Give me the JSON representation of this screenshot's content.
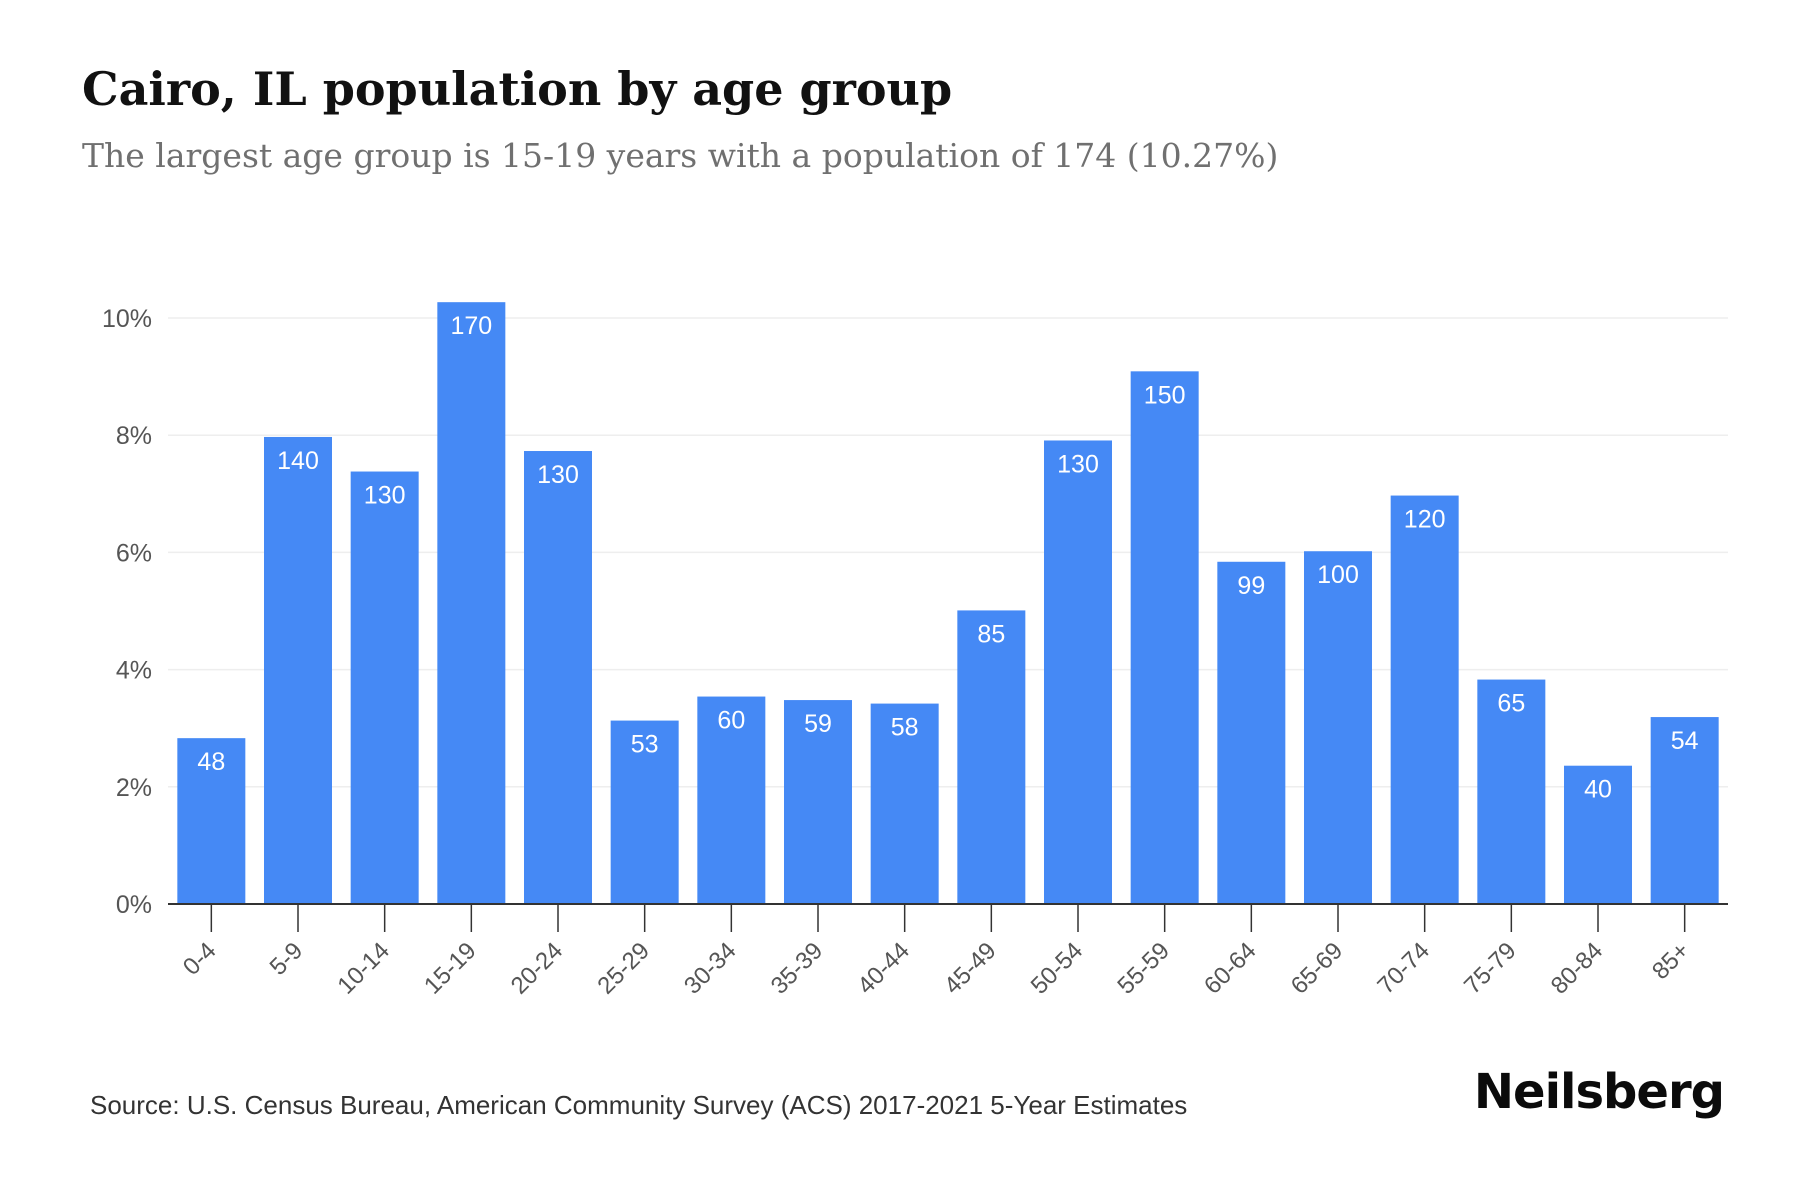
{
  "header": {
    "title": "Cairo, IL population by age group",
    "subtitle": "The largest age group is 15-19 years with a population of 174 (10.27%)"
  },
  "footer": {
    "source": "Source: U.S. Census Bureau, American Community Survey (ACS) 2017-2021 5-Year Estimates",
    "brand": "Neilsberg"
  },
  "colors": {
    "bar": "#4589f5",
    "bar_label": "#ffffff",
    "grid": "#eeeeee",
    "axis": "#333333",
    "tick_text": "#555555"
  },
  "chart_data": {
    "type": "bar",
    "title": "Cairo, IL population by age group",
    "subtitle": "The largest age group is 15-19 years with a population of 174 (10.27%)",
    "categories": [
      "0-4",
      "5-9",
      "10-14",
      "15-19",
      "20-24",
      "25-29",
      "30-34",
      "35-39",
      "40-44",
      "45-49",
      "50-54",
      "55-59",
      "60-64",
      "65-69",
      "70-74",
      "75-79",
      "80-84",
      "85+"
    ],
    "values_percent": [
      2.83,
      7.97,
      7.38,
      10.27,
      7.73,
      3.13,
      3.54,
      3.48,
      3.42,
      5.01,
      7.91,
      9.09,
      5.84,
      6.02,
      6.97,
      3.83,
      2.36,
      3.19
    ],
    "data_labels": [
      "48",
      "140",
      "130",
      "170",
      "130",
      "53",
      "60",
      "59",
      "58",
      "85",
      "130",
      "150",
      "99",
      "100",
      "120",
      "65",
      "40",
      "54"
    ],
    "yticks": [
      0,
      2,
      4,
      6,
      8,
      10
    ],
    "ytick_labels": [
      "0%",
      "2%",
      "4%",
      "6%",
      "8%",
      "10%"
    ],
    "ylim": [
      0,
      10.5
    ],
    "grid": true,
    "legend": false
  }
}
